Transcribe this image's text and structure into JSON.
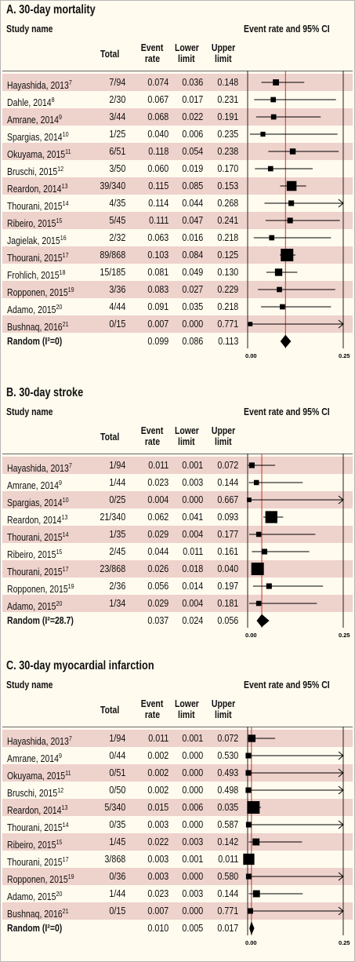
{
  "columns": {
    "study": "Study name",
    "total": "Total",
    "event_rate": [
      "Event",
      "rate"
    ],
    "lower": [
      "Lower",
      "limit"
    ],
    "upper": [
      "Upper",
      "limit"
    ],
    "plot": "Event rate and 95% CI"
  },
  "chart_data": [
    {
      "type": "forest",
      "title": "A. 30-day mortality",
      "xlim": [
        0,
        0.25
      ],
      "xticks": [
        "0.00",
        "0.25"
      ],
      "reference_line": 0.099,
      "studies": [
        {
          "name": "Hayashida, 2013",
          "ref": "7",
          "total": "7/94",
          "rate": "0.074",
          "lower": "0.036",
          "upper": "0.148",
          "weight": 6
        },
        {
          "name": "Dahle, 2014",
          "ref": "8",
          "total": "2/30",
          "rate": "0.067",
          "lower": "0.017",
          "upper": "0.231",
          "weight": 3
        },
        {
          "name": "Amrane, 2014",
          "ref": "9",
          "total": "3/44",
          "rate": "0.068",
          "lower": "0.022",
          "upper": "0.191",
          "weight": 3
        },
        {
          "name": "Spargias, 2014",
          "ref": "10",
          "total": "1/25",
          "rate": "0.040",
          "lower": "0.006",
          "upper": "0.235",
          "weight": 2
        },
        {
          "name": "Okuyama, 2015",
          "ref": "11",
          "total": "6/51",
          "rate": "0.118",
          "lower": "0.054",
          "upper": "0.238",
          "weight": 5
        },
        {
          "name": "Bruschi, 2015",
          "ref": "12",
          "total": "3/50",
          "rate": "0.060",
          "lower": "0.019",
          "upper": "0.170",
          "weight": 3
        },
        {
          "name": "Reardon, 2014",
          "ref": "13",
          "total": "39/340",
          "rate": "0.115",
          "lower": "0.085",
          "upper": "0.153",
          "weight": 30
        },
        {
          "name": "Thourani, 2015",
          "ref": "14",
          "total": "4/35",
          "rate": "0.114",
          "lower": "0.044",
          "upper": "0.268",
          "weight": 4
        },
        {
          "name": "Ribeiro, 2015",
          "ref": "15",
          "total": "5/45",
          "rate": "0.111",
          "lower": "0.047",
          "upper": "0.241",
          "weight": 4
        },
        {
          "name": "Jagielak, 2015",
          "ref": "16",
          "total": "2/32",
          "rate": "0.063",
          "lower": "0.016",
          "upper": "0.218",
          "weight": 3
        },
        {
          "name": "Thourani, 2015",
          "ref": "17",
          "total": "89/868",
          "rate": "0.103",
          "lower": "0.084",
          "upper": "0.125",
          "weight": 60
        },
        {
          "name": "Frohlich, 2015",
          "ref": "18",
          "total": "15/185",
          "rate": "0.081",
          "lower": "0.049",
          "upper": "0.130",
          "weight": 12
        },
        {
          "name": "Ropponen, 2015",
          "ref": "19",
          "total": "3/36",
          "rate": "0.083",
          "lower": "0.027",
          "upper": "0.229",
          "weight": 3
        },
        {
          "name": "Adamo, 2015",
          "ref": "20",
          "total": "4/44",
          "rate": "0.091",
          "lower": "0.035",
          "upper": "0.218",
          "weight": 3
        },
        {
          "name": "Bushnaq, 2016",
          "ref": "21",
          "total": "0/15",
          "rate": "0.007",
          "lower": "0.000",
          "upper": "0.771",
          "weight": 1
        }
      ],
      "random": {
        "label": "Random (I²=0)",
        "rate": "0.099",
        "lower": "0.086",
        "upper": "0.113"
      }
    },
    {
      "type": "forest",
      "title": "B. 30-day stroke",
      "xlim": [
        0,
        0.25
      ],
      "xticks": [
        "0.00",
        "0.25"
      ],
      "reference_line": 0.037,
      "studies": [
        {
          "name": "Hayashida, 2013",
          "ref": "7",
          "total": "1/94",
          "rate": "0.011",
          "lower": "0.001",
          "upper": "0.072",
          "weight": 3
        },
        {
          "name": "Amrane, 2014",
          "ref": "9",
          "total": "1/44",
          "rate": "0.023",
          "lower": "0.003",
          "upper": "0.144",
          "weight": 2
        },
        {
          "name": "Spargias, 2014",
          "ref": "10",
          "total": "0/25",
          "rate": "0.004",
          "lower": "0.000",
          "upper": "0.667",
          "weight": 1
        },
        {
          "name": "Reardon, 2014",
          "ref": "13",
          "total": "21/340",
          "rate": "0.062",
          "lower": "0.041",
          "upper": "0.093",
          "weight": 40
        },
        {
          "name": "Thourani, 2015",
          "ref": "14",
          "total": "1/35",
          "rate": "0.029",
          "lower": "0.004",
          "upper": "0.177",
          "weight": 2
        },
        {
          "name": "Ribeiro, 2015",
          "ref": "15",
          "total": "2/45",
          "rate": "0.044",
          "lower": "0.011",
          "upper": "0.161",
          "weight": 3
        },
        {
          "name": "Thourani, 2015",
          "ref": "17",
          "total": "23/868",
          "rate": "0.026",
          "lower": "0.018",
          "upper": "0.040",
          "weight": 45
        },
        {
          "name": "Ropponen, 2015",
          "ref": "19",
          "total": "2/36",
          "rate": "0.056",
          "lower": "0.014",
          "upper": "0.197",
          "weight": 3
        },
        {
          "name": "Adamo, 2015",
          "ref": "20",
          "total": "1/34",
          "rate": "0.029",
          "lower": "0.004",
          "upper": "0.181",
          "weight": 2
        }
      ],
      "random": {
        "label": "Random (I²=28.7)",
        "rate": "0.037",
        "lower": "0.024",
        "upper": "0.056"
      }
    },
    {
      "type": "forest",
      "title": "C. 30-day myocardial infarction",
      "xlim": [
        0,
        0.25
      ],
      "xticks": [
        "0.00",
        "0.25"
      ],
      "reference_line": 0.01,
      "studies": [
        {
          "name": "Hayashida, 2013",
          "ref": "7",
          "total": "1/94",
          "rate": "0.011",
          "lower": "0.001",
          "upper": "0.072",
          "weight": 6
        },
        {
          "name": "Amrane, 2014",
          "ref": "9",
          "total": "0/44",
          "rate": "0.002",
          "lower": "0.000",
          "upper": "0.530",
          "weight": 2
        },
        {
          "name": "Okuyama, 2015",
          "ref": "11",
          "total": "0/51",
          "rate": "0.002",
          "lower": "0.000",
          "upper": "0.493",
          "weight": 2
        },
        {
          "name": "Bruschi, 2015",
          "ref": "12",
          "total": "0/50",
          "rate": "0.002",
          "lower": "0.000",
          "upper": "0.498",
          "weight": 2
        },
        {
          "name": "Reardon, 2014",
          "ref": "13",
          "total": "5/340",
          "rate": "0.015",
          "lower": "0.006",
          "upper": "0.035",
          "weight": 30
        },
        {
          "name": "Thourani, 2015",
          "ref": "14",
          "total": "0/35",
          "rate": "0.003",
          "lower": "0.000",
          "upper": "0.587",
          "weight": 2
        },
        {
          "name": "Ribeiro, 2015",
          "ref": "15",
          "total": "1/45",
          "rate": "0.022",
          "lower": "0.003",
          "upper": "0.142",
          "weight": 5
        },
        {
          "name": "Thourani, 2015",
          "ref": "17",
          "total": "3/868",
          "rate": "0.003",
          "lower": "0.001",
          "upper": "0.011",
          "weight": 22
        },
        {
          "name": "Ropponen, 2015",
          "ref": "19",
          "total": "0/36",
          "rate": "0.003",
          "lower": "0.000",
          "upper": "0.580",
          "weight": 2
        },
        {
          "name": "Adamo, 2015",
          "ref": "20",
          "total": "1/44",
          "rate": "0.023",
          "lower": "0.003",
          "upper": "0.144",
          "weight": 5
        },
        {
          "name": "Bushnaq, 2016",
          "ref": "21",
          "total": "0/15",
          "rate": "0.007",
          "lower": "0.000",
          "upper": "0.771",
          "weight": 2
        }
      ],
      "random": {
        "label": "Random (I²=0)",
        "rate": "0.010",
        "lower": "0.005",
        "upper": "0.017"
      }
    }
  ],
  "colors": {
    "row_shade": "#eed2cc",
    "reference_line": "#c0392b",
    "marker": "#000000",
    "background": "#fffbef"
  }
}
